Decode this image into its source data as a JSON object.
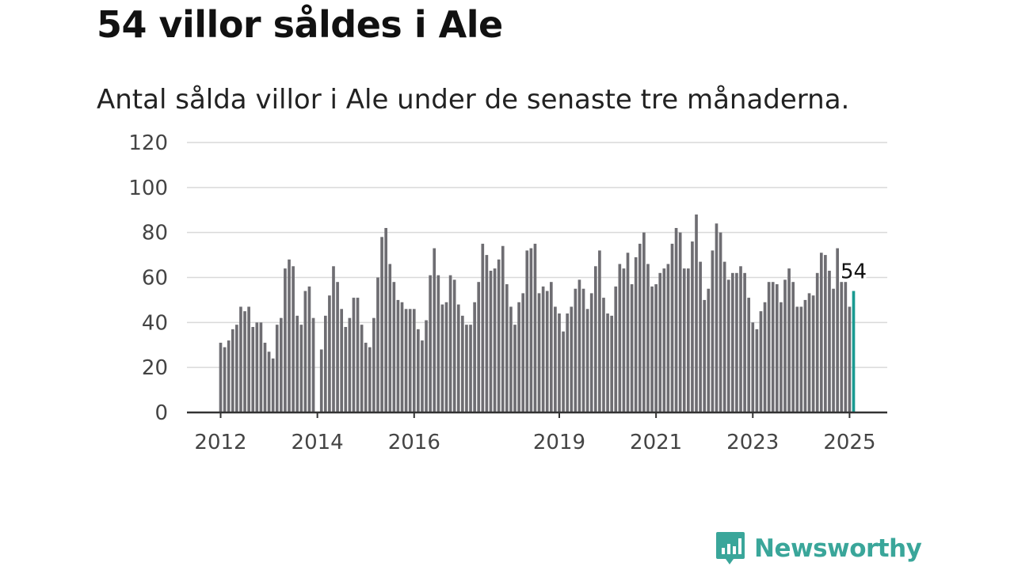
{
  "title": "54 villor såldes i Ale",
  "subtitle": "Antal sålda villor i Ale under de senaste tre månaderna.",
  "brand": {
    "name": "Newsworthy",
    "icon": "newsworthy-logo-icon",
    "color": "#3aa69a"
  },
  "colors": {
    "bar": "#6e6d72",
    "highlight": "#1a9a91",
    "grid": "#d9d9d9",
    "axis": "#333333"
  },
  "chart_data": {
    "type": "bar",
    "title": "",
    "xlabel": "",
    "ylabel": "",
    "ylim": [
      0,
      120
    ],
    "yticks": [
      0,
      20,
      40,
      60,
      80,
      100,
      120
    ],
    "grid": true,
    "x_ticks": [
      {
        "label": "2012",
        "index": 0
      },
      {
        "label": "2014",
        "index": 24
      },
      {
        "label": "2016",
        "index": 48
      },
      {
        "label": "2019",
        "index": 84
      },
      {
        "label": "2021",
        "index": 108
      },
      {
        "label": "2023",
        "index": 132
      },
      {
        "label": "2025",
        "index": 156
      }
    ],
    "series": [
      {
        "values": [
          31,
          29,
          32,
          37,
          39,
          47,
          45,
          47,
          38,
          40,
          40,
          31,
          27,
          24,
          39,
          42,
          64,
          68,
          65,
          43,
          39,
          54,
          56,
          42,
          0,
          28,
          43,
          52,
          65,
          58,
          46,
          38,
          42,
          51,
          51,
          39,
          31,
          29,
          42,
          60,
          78,
          82,
          66,
          58,
          50,
          49,
          46,
          46,
          46,
          37,
          32,
          41,
          61,
          73,
          61,
          48,
          49,
          61,
          59,
          48,
          43,
          39,
          39,
          49,
          58,
          75,
          70,
          63,
          64,
          68,
          74,
          57,
          47,
          39,
          49,
          53,
          72,
          73,
          75,
          53,
          56,
          54,
          58,
          47,
          44,
          36,
          44,
          47,
          55,
          59,
          55,
          46,
          53,
          65,
          72,
          51,
          44,
          43,
          56,
          66,
          64,
          71,
          57,
          69,
          75,
          80,
          66,
          56,
          57,
          62,
          64,
          66,
          75,
          82,
          80,
          64,
          64,
          76,
          88,
          67,
          50,
          55,
          72,
          84,
          80,
          67,
          59,
          62,
          62,
          65,
          62,
          51,
          40,
          37,
          45,
          49,
          58,
          58,
          57,
          49,
          59,
          64,
          58,
          47,
          47,
          50,
          53,
          52,
          62,
          71,
          70,
          63,
          55,
          73,
          58,
          58,
          47,
          54
        ]
      }
    ],
    "highlight": {
      "label": "54",
      "value": 54
    }
  }
}
